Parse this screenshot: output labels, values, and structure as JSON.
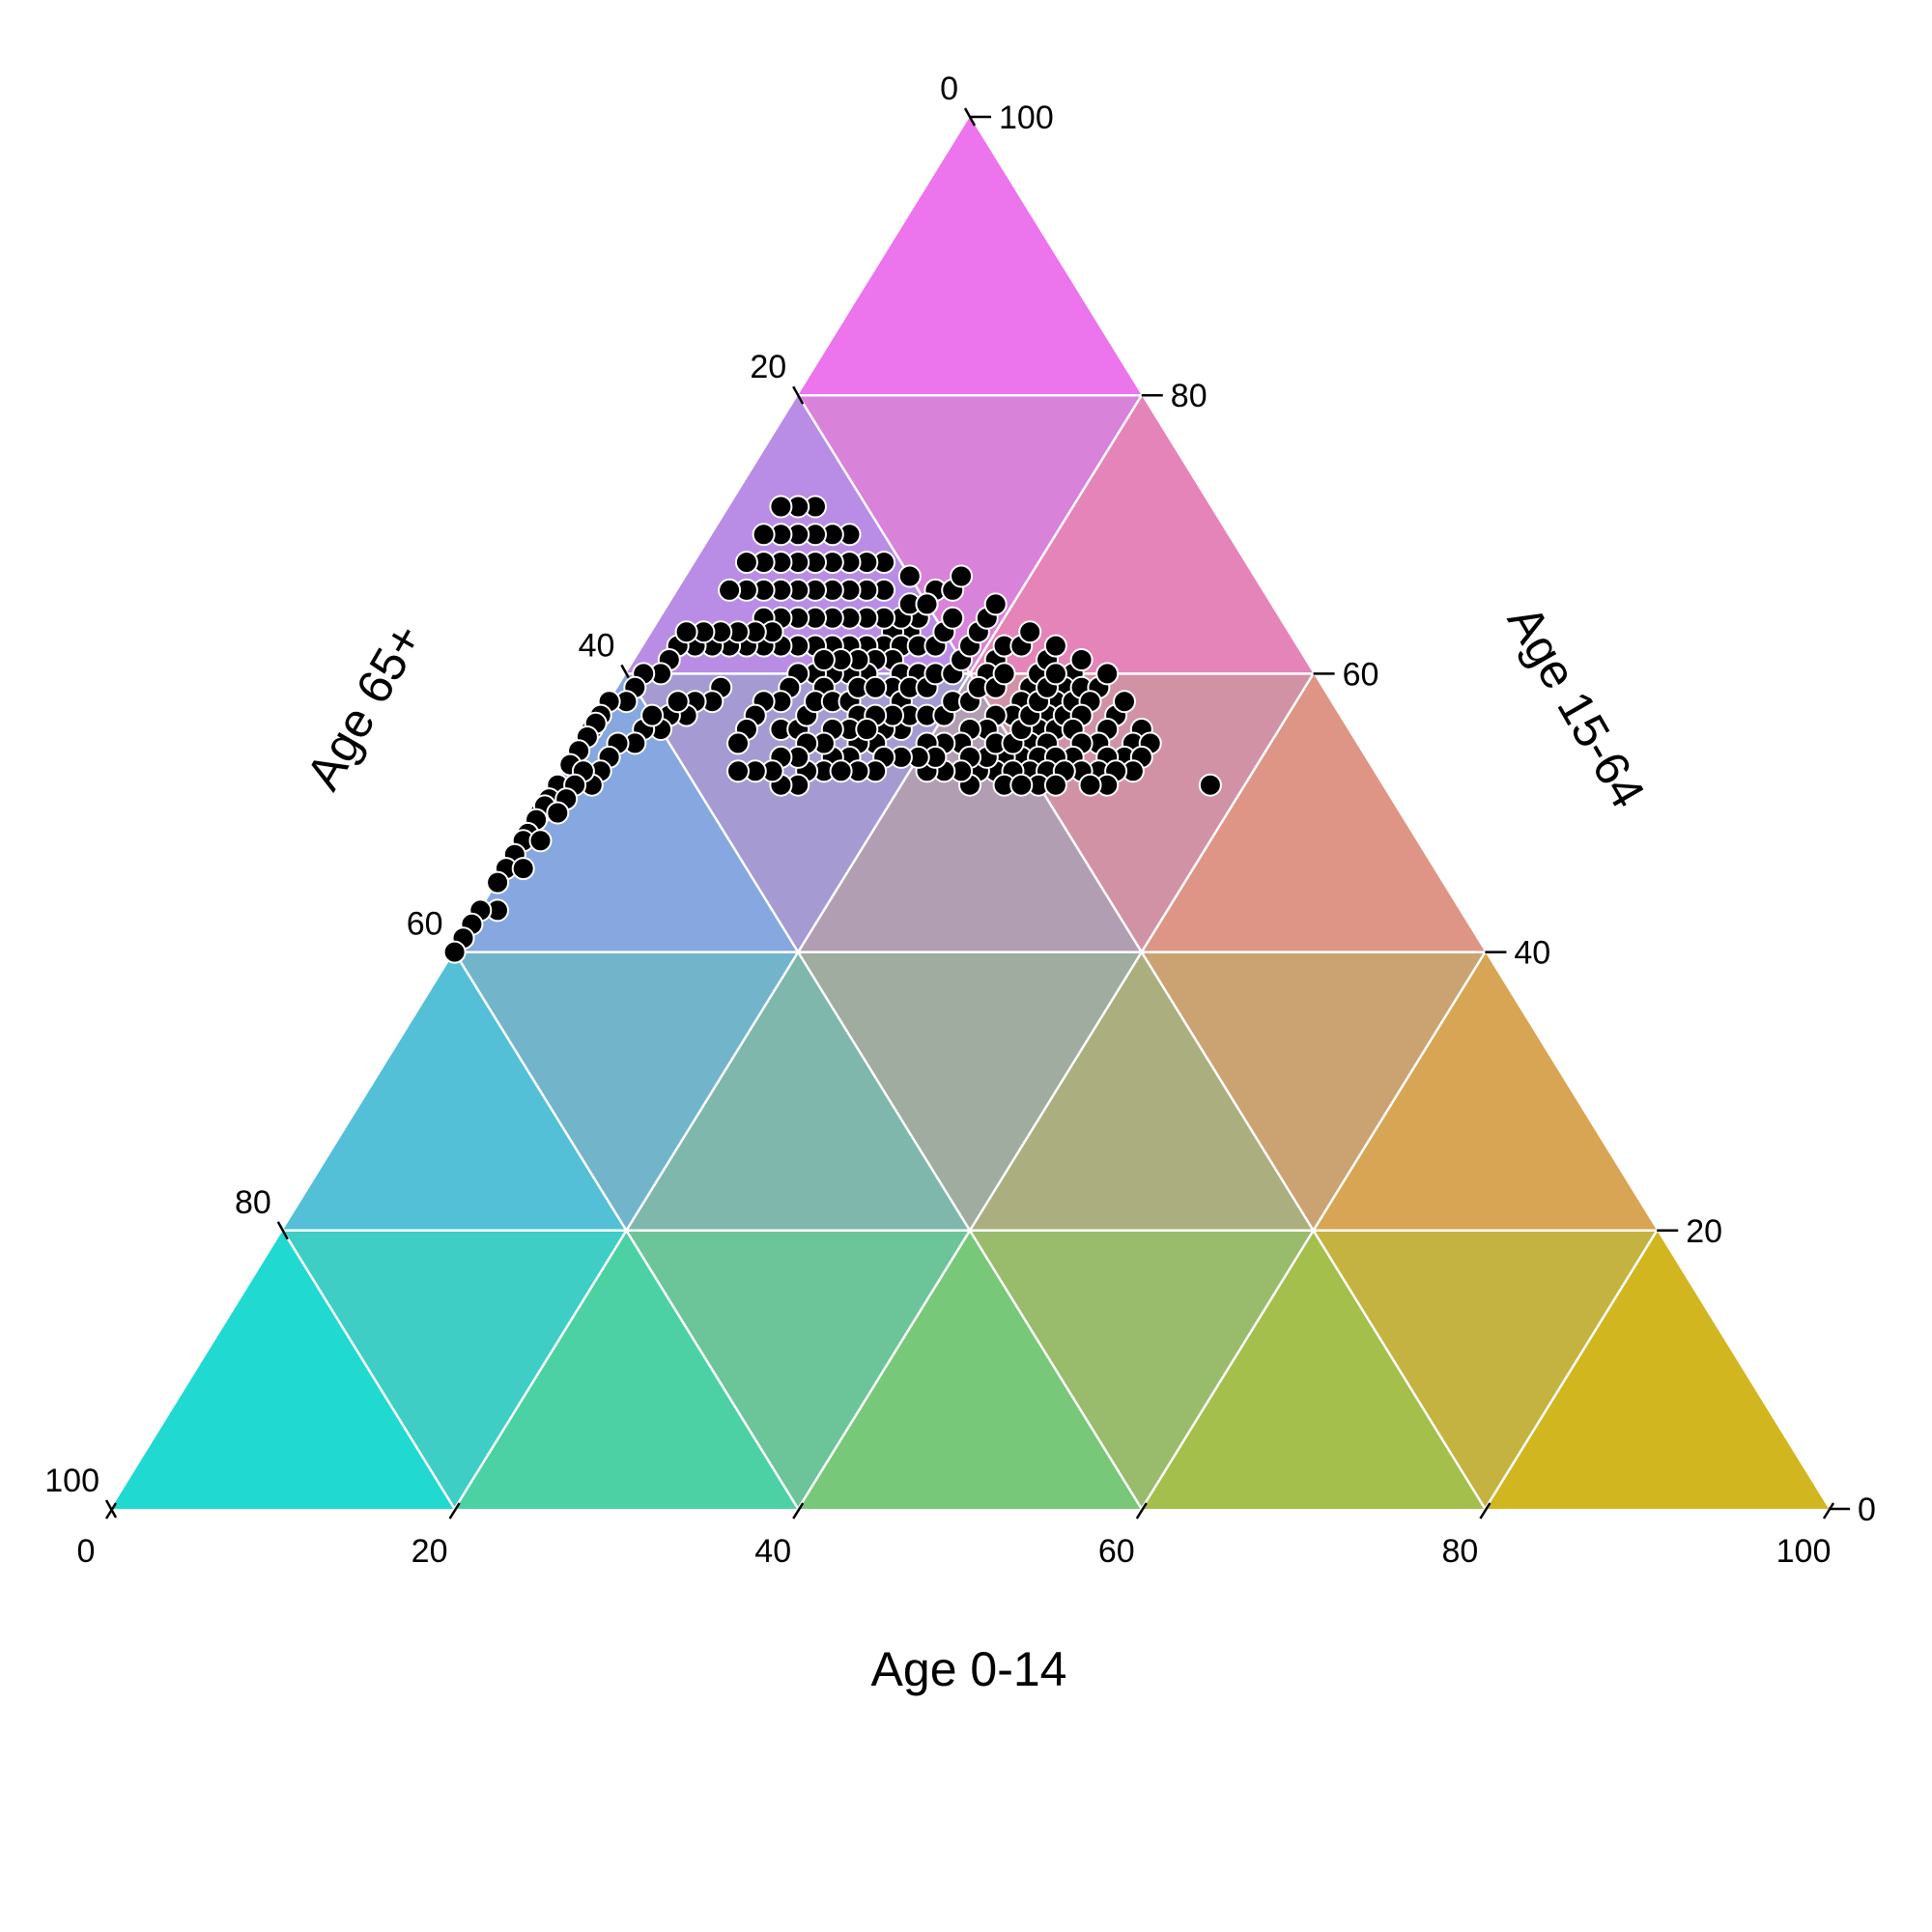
{
  "chart_data": {
    "type": "scatter",
    "subtype": "ternary",
    "axes": {
      "bottom": {
        "label": "Age 0-14",
        "ticks": [
          "0",
          "20",
          "40",
          "60",
          "80",
          "100"
        ]
      },
      "right": {
        "label": "Age 15-64",
        "ticks": [
          "0",
          "20",
          "40",
          "60",
          "80",
          "100"
        ]
      },
      "left": {
        "label": "Age 65+",
        "ticks": [
          "0",
          "20",
          "40",
          "60",
          "80",
          "100"
        ]
      }
    },
    "range": [
      0,
      100
    ],
    "grid": true,
    "grid_color": "#ffffff",
    "corner_colors": {
      "age_0_14": "#00E5DE",
      "age_15_64": "#FF66FF",
      "age_65_plus": "#DDB800"
    },
    "point_color": "#000000",
    "point_outline": "#ffffff",
    "points": [
      [
        20,
        65,
        15
      ],
      [
        22,
        63,
        15
      ],
      [
        21,
        64,
        15
      ],
      [
        23,
        63,
        14
      ],
      [
        19,
        66,
        15
      ],
      [
        24,
        62,
        14
      ],
      [
        22,
        64,
        14
      ],
      [
        25,
        62,
        13
      ],
      [
        21,
        65,
        14
      ],
      [
        23,
        64,
        13
      ],
      [
        20,
        67,
        13
      ],
      [
        26,
        62,
        12
      ],
      [
        24,
        64,
        12
      ],
      [
        22,
        66,
        12
      ],
      [
        25,
        64,
        11
      ],
      [
        23,
        66,
        11
      ],
      [
        27,
        62,
        11
      ],
      [
        21,
        68,
        11
      ],
      [
        26,
        64,
        10
      ],
      [
        24,
        66,
        10
      ],
      [
        22,
        68,
        10
      ],
      [
        28,
        62,
        10
      ],
      [
        25,
        66,
        9
      ],
      [
        27,
        64,
        9
      ],
      [
        23,
        68,
        9
      ],
      [
        29,
        62,
        9
      ],
      [
        26,
        66,
        8
      ],
      [
        24,
        68,
        8
      ],
      [
        28,
        64,
        8
      ],
      [
        22,
        70,
        8
      ],
      [
        27,
        66,
        7
      ],
      [
        25,
        68,
        7
      ],
      [
        29,
        64,
        7
      ],
      [
        23,
        70,
        7
      ],
      [
        26,
        68,
        6
      ],
      [
        28,
        66,
        6
      ],
      [
        24,
        70,
        6
      ],
      [
        30,
        64,
        6
      ],
      [
        25,
        70,
        5
      ],
      [
        27,
        68,
        5
      ],
      [
        29,
        66,
        5
      ],
      [
        23,
        72,
        5
      ],
      [
        26,
        70,
        4
      ],
      [
        28,
        68,
        4
      ],
      [
        24,
        72,
        4
      ],
      [
        30,
        66,
        4
      ],
      [
        25,
        72,
        3
      ],
      [
        27,
        70,
        3
      ],
      [
        29,
        68,
        3
      ],
      [
        31,
        66,
        3
      ],
      [
        23,
        62,
        15
      ],
      [
        24,
        61,
        15
      ],
      [
        22,
        62,
        16
      ],
      [
        25,
        61,
        14
      ],
      [
        26,
        60,
        14
      ],
      [
        24,
        60,
        16
      ],
      [
        27,
        60,
        13
      ],
      [
        25,
        59,
        16
      ],
      [
        21,
        62,
        17
      ],
      [
        23,
        60,
        17
      ],
      [
        26,
        61,
        13
      ],
      [
        28,
        60,
        12
      ],
      [
        27,
        61,
        12
      ],
      [
        29,
        60,
        11
      ],
      [
        28,
        61,
        11
      ],
      [
        20,
        63,
        17
      ],
      [
        18,
        66,
        16
      ],
      [
        19,
        64,
        17
      ],
      [
        17,
        67,
        16
      ],
      [
        20,
        65,
        15
      ],
      [
        30,
        62,
        8
      ],
      [
        31,
        62,
        7
      ],
      [
        30,
        63,
        7
      ],
      [
        32,
        62,
        6
      ],
      [
        31,
        63,
        6
      ],
      [
        33,
        62,
        5
      ],
      [
        32,
        63,
        5
      ],
      [
        34,
        62,
        4
      ],
      [
        33,
        63,
        4
      ],
      [
        35,
        62,
        3
      ],
      [
        34,
        63,
        3
      ],
      [
        36,
        62,
        2
      ],
      [
        35,
        63,
        2
      ],
      [
        37,
        61,
        2
      ],
      [
        38,
        60,
        2
      ],
      [
        39,
        60,
        1
      ],
      [
        40,
        59,
        1
      ],
      [
        41,
        58,
        1
      ],
      [
        42,
        58,
        0
      ],
      [
        43,
        57,
        0
      ],
      [
        44,
        56,
        0
      ],
      [
        44,
        57,
        -1
      ],
      [
        45,
        56,
        -1
      ],
      [
        46,
        55,
        -1
      ],
      [
        47,
        54,
        -1
      ],
      [
        48,
        52,
        0
      ],
      [
        49,
        51,
        0
      ],
      [
        50,
        50,
        0
      ],
      [
        50,
        51,
        -1
      ],
      [
        51,
        50,
        -1
      ],
      [
        52,
        49,
        -1
      ],
      [
        52,
        48,
        0
      ],
      [
        53,
        47,
        0
      ],
      [
        54,
        46,
        0
      ],
      [
        55,
        45,
        0
      ],
      [
        35,
        59,
        6
      ],
      [
        36,
        58,
        6
      ],
      [
        37,
        58,
        5
      ],
      [
        38,
        57,
        5
      ],
      [
        39,
        57,
        4
      ],
      [
        38,
        58,
        4
      ],
      [
        40,
        56,
        4
      ],
      [
        41,
        56,
        3
      ],
      [
        42,
        55,
        3
      ],
      [
        40,
        57,
        3
      ],
      [
        43,
        55,
        2
      ],
      [
        44,
        54,
        2
      ],
      [
        45,
        53,
        2
      ],
      [
        46,
        52,
        2
      ],
      [
        46,
        53,
        1
      ],
      [
        47,
        52,
        1
      ],
      [
        48,
        51,
        1
      ],
      [
        49,
        50,
        1
      ],
      [
        51,
        48,
        1
      ],
      [
        53,
        46,
        1
      ],
      [
        56,
        43,
        1
      ],
      [
        57,
        43,
        0
      ],
      [
        58,
        42,
        0
      ],
      [
        59,
        41,
        0
      ],
      [
        60,
        40,
        0
      ],
      [
        20,
        65,
        15
      ],
      [
        30,
        60,
        10
      ],
      [
        29,
        59,
        12
      ],
      [
        31,
        59,
        10
      ],
      [
        32,
        58,
        10
      ],
      [
        33,
        58,
        9
      ],
      [
        34,
        57,
        9
      ],
      [
        33,
        56,
        11
      ],
      [
        35,
        56,
        9
      ],
      [
        36,
        55,
        9
      ],
      [
        32,
        56,
        12
      ],
      [
        31,
        57,
        12
      ],
      [
        30,
        58,
        12
      ],
      [
        29,
        58,
        13
      ],
      [
        28,
        58,
        14
      ],
      [
        27,
        59,
        14
      ],
      [
        26,
        59,
        15
      ],
      [
        25,
        58,
        17
      ],
      [
        24,
        59,
        17
      ],
      [
        23,
        59,
        18
      ],
      [
        22,
        60,
        18
      ],
      [
        21,
        60,
        19
      ],
      [
        20,
        61,
        19
      ],
      [
        19,
        62,
        19
      ],
      [
        18,
        63,
        19
      ],
      [
        17,
        64,
        19
      ],
      [
        16,
        65,
        19
      ],
      [
        18,
        61,
        21
      ],
      [
        19,
        60,
        21
      ],
      [
        17,
        62,
        21
      ],
      [
        17,
        59,
        24
      ],
      [
        18,
        58,
        24
      ],
      [
        16,
        60,
        24
      ],
      [
        19,
        57,
        24
      ],
      [
        20,
        57,
        23
      ],
      [
        21,
        56,
        23
      ],
      [
        22,
        56,
        22
      ],
      [
        23,
        55,
        22
      ],
      [
        24,
        55,
        21
      ],
      [
        25,
        55,
        20
      ],
      [
        16,
        62,
        22
      ],
      [
        15,
        63,
        22
      ],
      [
        15,
        61,
        24
      ],
      [
        14,
        62,
        24
      ],
      [
        14,
        60,
        26
      ],
      [
        15,
        59,
        26
      ],
      [
        16,
        58,
        26
      ],
      [
        17,
        57,
        26
      ],
      [
        18,
        56,
        26
      ],
      [
        19,
        55,
        26
      ],
      [
        20,
        54,
        26
      ],
      [
        21,
        54,
        25
      ],
      [
        22,
        53,
        25
      ],
      [
        23,
        53,
        24
      ],
      [
        24,
        52,
        24
      ],
      [
        26,
        56,
        18
      ],
      [
        27,
        56,
        17
      ],
      [
        28,
        55,
        17
      ],
      [
        29,
        55,
        16
      ],
      [
        30,
        54,
        16
      ],
      [
        31,
        54,
        15
      ],
      [
        32,
        53,
        15
      ],
      [
        33,
        53,
        14
      ],
      [
        34,
        52,
        14
      ],
      [
        35,
        52,
        13
      ],
      [
        28,
        57,
        15
      ],
      [
        29,
        56,
        15
      ],
      [
        30,
        56,
        14
      ],
      [
        31,
        55,
        14
      ],
      [
        32,
        55,
        13
      ],
      [
        33,
        54,
        13
      ],
      [
        34,
        54,
        12
      ],
      [
        35,
        53,
        12
      ],
      [
        36,
        53,
        11
      ],
      [
        37,
        53,
        10
      ],
      [
        25,
        57,
        18
      ],
      [
        26,
        57,
        17
      ],
      [
        27,
        57,
        16
      ],
      [
        28,
        56,
        16
      ],
      [
        24,
        57,
        19
      ],
      [
        23,
        57,
        20
      ],
      [
        22,
        58,
        20
      ],
      [
        21,
        58,
        21
      ],
      [
        20,
        59,
        21
      ],
      [
        19,
        59,
        22
      ],
      [
        18,
        60,
        22
      ],
      [
        22,
        54,
        24
      ],
      [
        21,
        55,
        24
      ],
      [
        20,
        55,
        25
      ],
      [
        19,
        56,
        25
      ],
      [
        18,
        57,
        25
      ],
      [
        17,
        58,
        25
      ],
      [
        16,
        59,
        25
      ],
      [
        15,
        60,
        25
      ],
      [
        23,
        54,
        23
      ],
      [
        24,
        53,
        23
      ],
      [
        25,
        53,
        22
      ],
      [
        26,
        53,
        21
      ],
      [
        25,
        54,
        21
      ],
      [
        26,
        54,
        20
      ],
      [
        27,
        54,
        19
      ],
      [
        28,
        54,
        18
      ],
      [
        29,
        53,
        18
      ],
      [
        30,
        53,
        17
      ],
      [
        31,
        53,
        16
      ],
      [
        17,
        56,
        27
      ],
      [
        16,
        57,
        27
      ],
      [
        15,
        58,
        27
      ],
      [
        14,
        59,
        27
      ],
      [
        13,
        61,
        26
      ],
      [
        18,
        55,
        27
      ],
      [
        19,
        54,
        27
      ],
      [
        20,
        53,
        27
      ],
      [
        21,
        53,
        26
      ],
      [
        22,
        52,
        26
      ],
      [
        13,
        59,
        28
      ],
      [
        14,
        58,
        28
      ],
      [
        15,
        57,
        28
      ],
      [
        16,
        56,
        28
      ],
      [
        13,
        57,
        30
      ],
      [
        14,
        56,
        30
      ],
      [
        15,
        55,
        30
      ],
      [
        16,
        55,
        29
      ],
      [
        17,
        54,
        29
      ],
      [
        18,
        54,
        28
      ],
      [
        19,
        53,
        28
      ],
      [
        20,
        52,
        28
      ],
      [
        21,
        52,
        27
      ],
      [
        12,
        60,
        28
      ],
      [
        12,
        58,
        30
      ],
      [
        12,
        56,
        32
      ],
      [
        13,
        55,
        32
      ],
      [
        14,
        54,
        32
      ],
      [
        15,
        54,
        31
      ],
      [
        16,
        53,
        31
      ],
      [
        17,
        53,
        30
      ],
      [
        18,
        53,
        29
      ],
      [
        19,
        52,
        29
      ],
      [
        12,
        55,
        33
      ],
      [
        13,
        54,
        33
      ],
      [
        14,
        53,
        33
      ],
      [
        15,
        53,
        32
      ],
      [
        16,
        52,
        32
      ],
      [
        17,
        52,
        31
      ],
      [
        10,
        52,
        38
      ]
    ]
  }
}
